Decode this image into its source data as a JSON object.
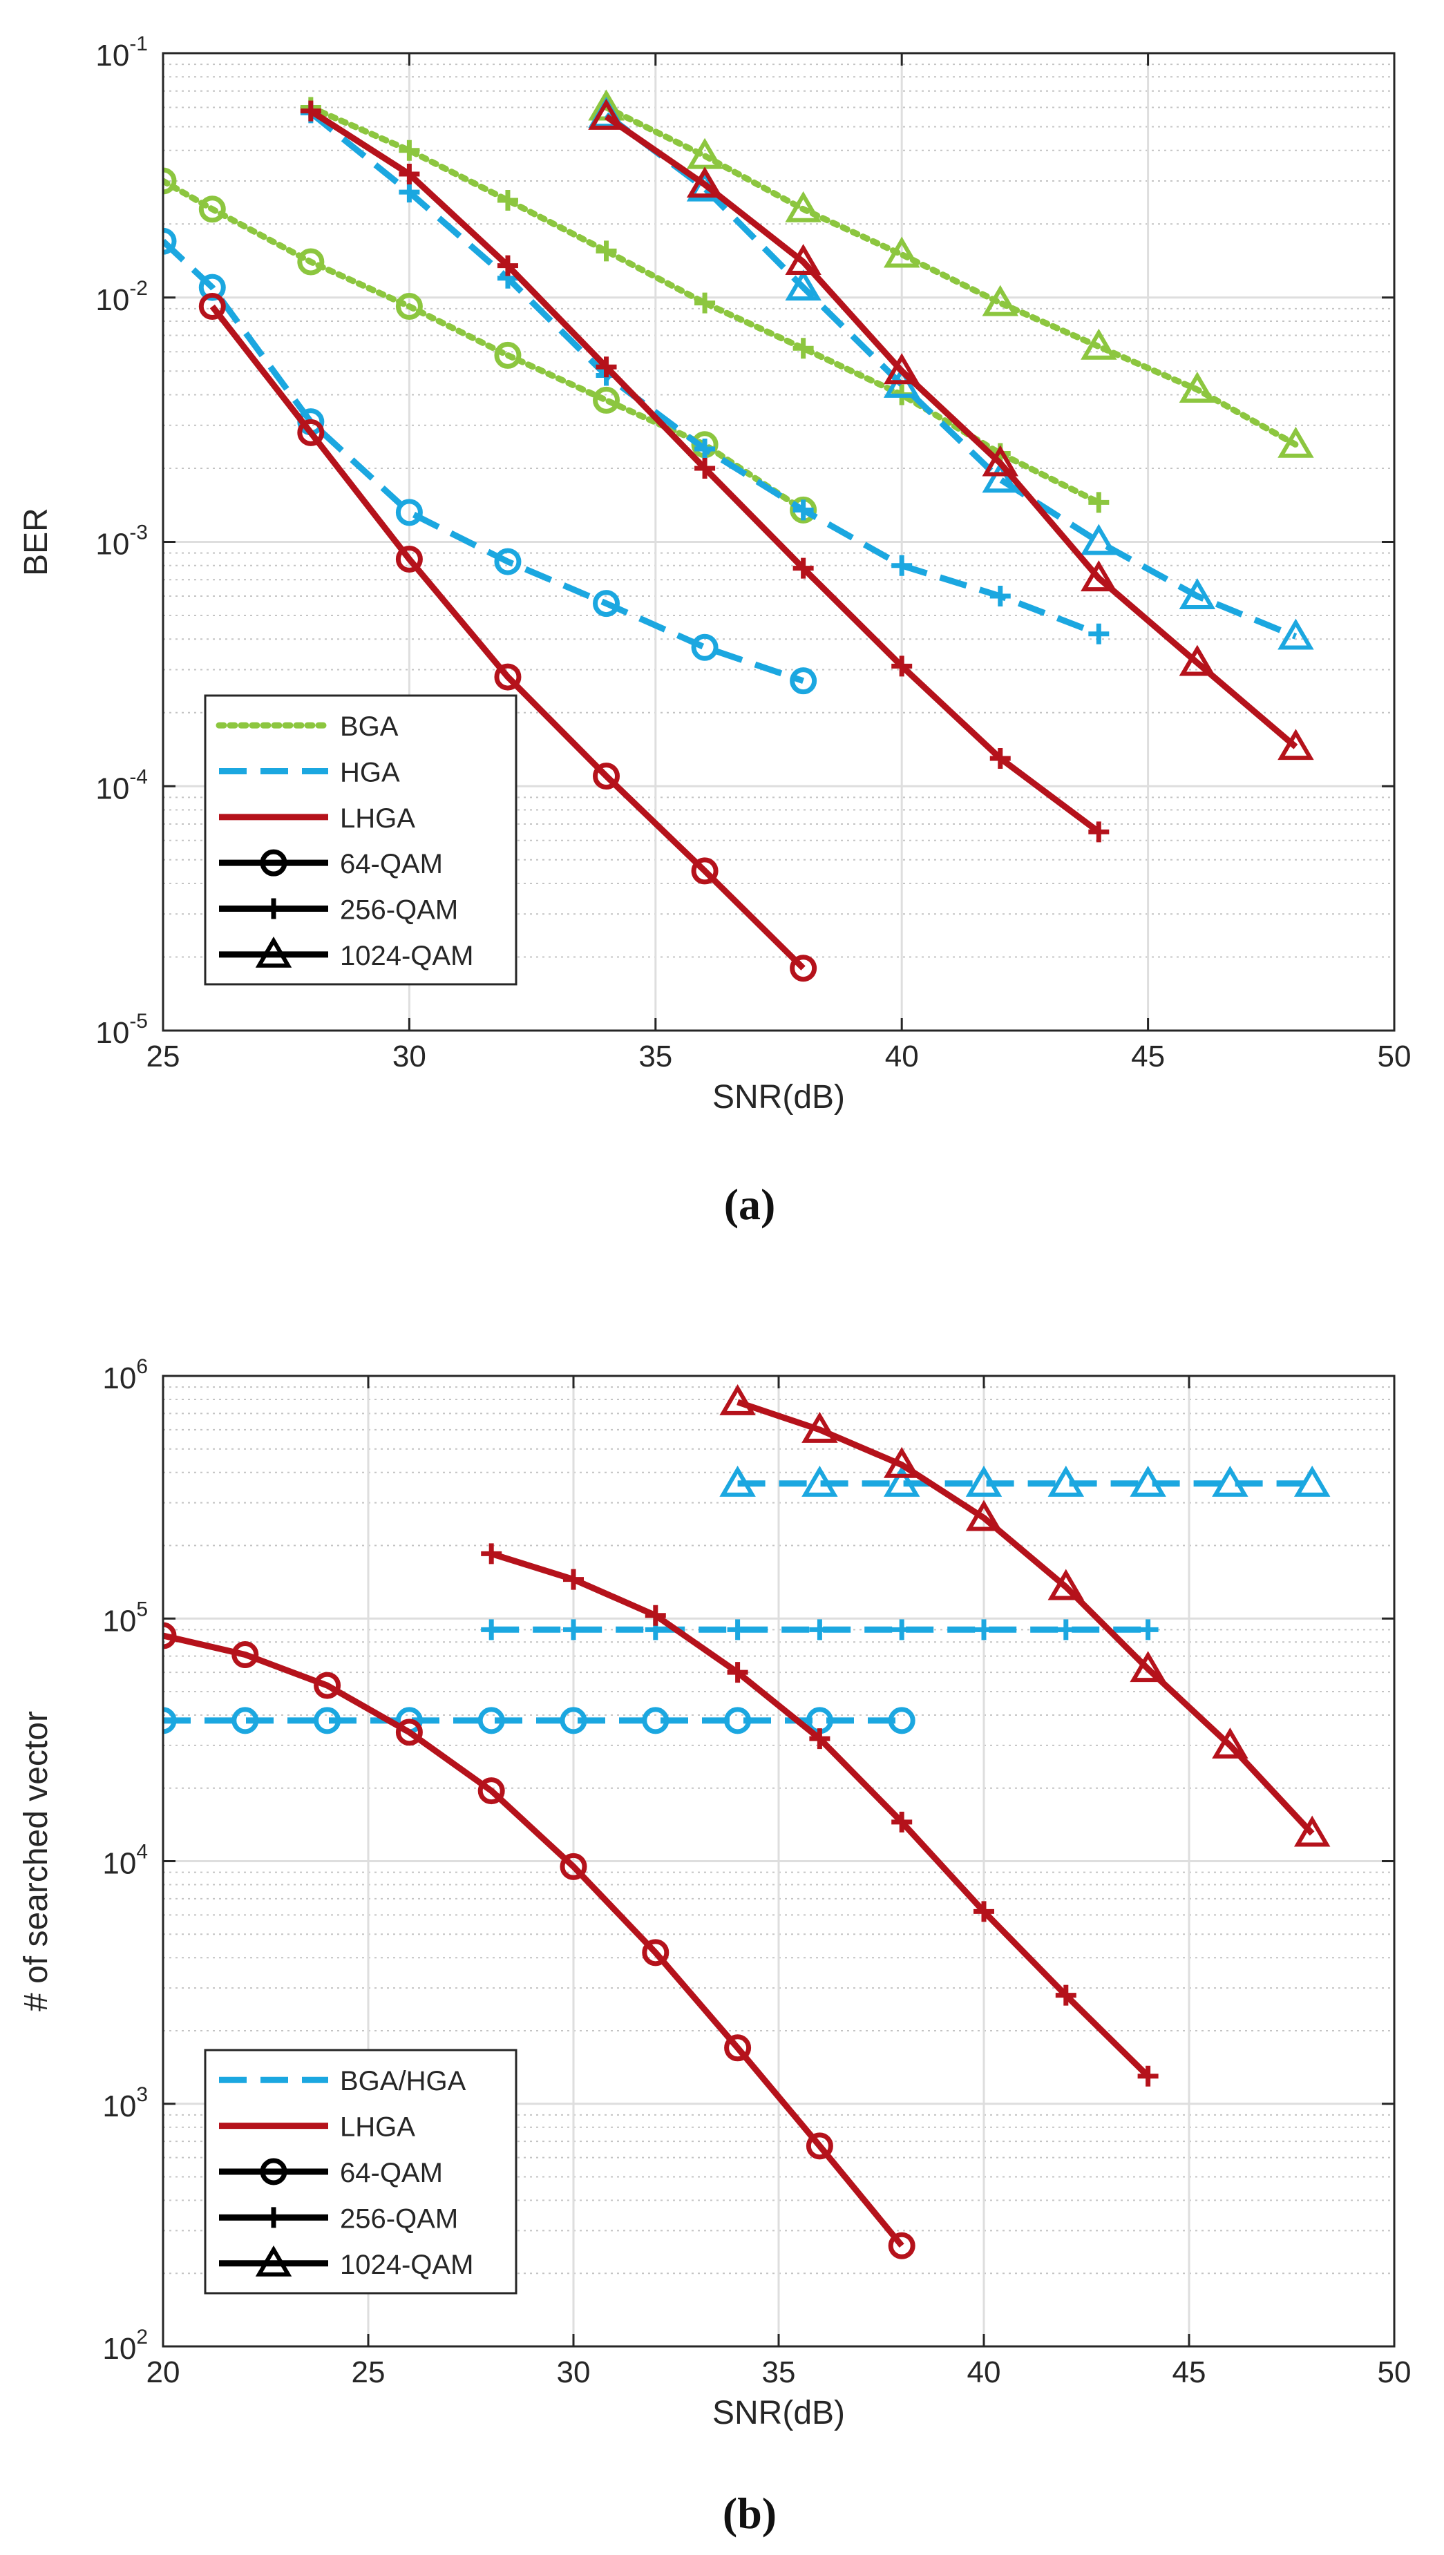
{
  "chart_data": [
    {
      "id": "a",
      "type": "line",
      "yscale": "log",
      "title": "",
      "subfigure_label": "(a)",
      "xlabel": "SNR(dB)",
      "ylabel": "BER",
      "xlim": [
        25,
        50
      ],
      "ylim": [
        1e-05,
        0.1
      ],
      "grid": true,
      "minor_grid": true,
      "xticks": [
        25,
        30,
        35,
        40,
        45,
        50
      ],
      "xtick_labels": [
        "25",
        "30",
        "35",
        "40",
        "45",
        "50"
      ],
      "yticks": [
        1e-05,
        0.0001,
        0.001,
        0.01,
        0.1
      ],
      "ytick_bases": [
        "10",
        "10",
        "10",
        "10",
        "10"
      ],
      "ytick_exps": [
        "-5",
        "-4",
        "-3",
        "-2",
        "-1"
      ],
      "legend_position": "bottom-left",
      "legend": [
        {
          "label": "BGA",
          "color": "#8CC63F",
          "dash": "dot",
          "marker": "none"
        },
        {
          "label": "HGA",
          "color": "#1BA7E0",
          "dash": "dash",
          "marker": "none"
        },
        {
          "label": "LHGA",
          "color": "#B5121B",
          "dash": "solid",
          "marker": "none"
        },
        {
          "label": "64-QAM",
          "color": "#000000",
          "dash": "solid",
          "marker": "circle"
        },
        {
          "label": "256-QAM",
          "color": "#000000",
          "dash": "solid",
          "marker": "plus"
        },
        {
          "label": "1024-QAM",
          "color": "#000000",
          "dash": "solid",
          "marker": "triangle"
        }
      ],
      "series": [
        {
          "name": "BGA 64-QAM",
          "color": "#8CC63F",
          "dash": "dot",
          "marker": "circle",
          "x": [
            25,
            26,
            28,
            30,
            32,
            34,
            36,
            38
          ],
          "y": [
            0.03,
            0.023,
            0.014,
            0.0092,
            0.0058,
            0.0038,
            0.0025,
            0.00135
          ]
        },
        {
          "name": "BGA 256-QAM",
          "color": "#8CC63F",
          "dash": "dot",
          "marker": "plus",
          "x": [
            28,
            30,
            32,
            34,
            36,
            38,
            40,
            42,
            44
          ],
          "y": [
            0.06,
            0.04,
            0.025,
            0.0155,
            0.0095,
            0.0062,
            0.004,
            0.0023,
            0.00145
          ]
        },
        {
          "name": "BGA 1024-QAM",
          "color": "#8CC63F",
          "dash": "dot",
          "marker": "triangle",
          "x": [
            34,
            36,
            38,
            40,
            42,
            44,
            46,
            48
          ],
          "y": [
            0.06,
            0.038,
            0.023,
            0.015,
            0.0095,
            0.0063,
            0.0042,
            0.0025
          ]
        },
        {
          "name": "HGA 64-QAM",
          "color": "#1BA7E0",
          "dash": "dash",
          "marker": "circle",
          "x": [
            25,
            26,
            28,
            30,
            32,
            34,
            36,
            38
          ],
          "y": [
            0.017,
            0.011,
            0.0031,
            0.00132,
            0.00083,
            0.00056,
            0.00037,
            0.00027
          ]
        },
        {
          "name": "HGA 256-QAM",
          "color": "#1BA7E0",
          "dash": "dash",
          "marker": "plus",
          "x": [
            28,
            30,
            32,
            34,
            36,
            38,
            40,
            42,
            44
          ],
          "y": [
            0.057,
            0.027,
            0.012,
            0.0048,
            0.0024,
            0.00135,
            0.0008,
            0.0006,
            0.00042
          ]
        },
        {
          "name": "HGA 1024-QAM",
          "color": "#1BA7E0",
          "dash": "dash",
          "marker": "triangle",
          "x": [
            34,
            36,
            38,
            40,
            42,
            44,
            46,
            48
          ],
          "y": [
            0.056,
            0.028,
            0.011,
            0.0044,
            0.0018,
            0.001,
            0.0006,
            0.00041
          ]
        },
        {
          "name": "LHGA 64-QAM",
          "color": "#B5121B",
          "dash": "solid",
          "marker": "circle",
          "x": [
            26,
            28,
            30,
            32,
            34,
            36,
            38
          ],
          "y": [
            0.0092,
            0.0028,
            0.00085,
            0.00028,
            0.00011,
            4.5e-05,
            1.8e-05
          ]
        },
        {
          "name": "LHGA 256-QAM",
          "color": "#B5121B",
          "dash": "solid",
          "marker": "plus",
          "x": [
            28,
            30,
            32,
            34,
            36,
            38,
            40,
            42,
            44
          ],
          "y": [
            0.058,
            0.032,
            0.0135,
            0.0052,
            0.002,
            0.00078,
            0.00031,
            0.00013,
            6.5e-05
          ]
        },
        {
          "name": "LHGA 1024-QAM",
          "color": "#B5121B",
          "dash": "solid",
          "marker": "triangle",
          "x": [
            34,
            36,
            38,
            40,
            42,
            44,
            46,
            48
          ],
          "y": [
            0.055,
            0.029,
            0.014,
            0.005,
            0.0021,
            0.00071,
            0.00032,
            0.000145
          ]
        }
      ]
    },
    {
      "id": "b",
      "type": "line",
      "yscale": "log",
      "title": "",
      "subfigure_label": "(b)",
      "xlabel": "SNR(dB)",
      "ylabel": "# of searched vector",
      "xlim": [
        20,
        50
      ],
      "ylim": [
        100,
        1000000
      ],
      "grid": true,
      "minor_grid": true,
      "xticks": [
        20,
        25,
        30,
        35,
        40,
        45,
        50
      ],
      "xtick_labels": [
        "20",
        "25",
        "30",
        "35",
        "40",
        "45",
        "50"
      ],
      "yticks": [
        100,
        1000,
        10000,
        100000,
        1000000
      ],
      "ytick_bases": [
        "10",
        "10",
        "10",
        "10",
        "10"
      ],
      "ytick_exps": [
        "2",
        "3",
        "4",
        "5",
        "6"
      ],
      "legend_position": "bottom-left",
      "legend": [
        {
          "label": "BGA/HGA",
          "color": "#1BA7E0",
          "dash": "dash",
          "marker": "none"
        },
        {
          "label": "LHGA",
          "color": "#B5121B",
          "dash": "solid",
          "marker": "none"
        },
        {
          "label": "64-QAM",
          "color": "#000000",
          "dash": "solid",
          "marker": "circle"
        },
        {
          "label": "256-QAM",
          "color": "#000000",
          "dash": "solid",
          "marker": "plus"
        },
        {
          "label": "1024-QAM",
          "color": "#000000",
          "dash": "solid",
          "marker": "triangle"
        }
      ],
      "series": [
        {
          "name": "BGA/HGA 64-QAM",
          "color": "#1BA7E0",
          "dash": "dash",
          "marker": "circle",
          "x": [
            20,
            22,
            24,
            26,
            28,
            30,
            32,
            34,
            36,
            38
          ],
          "y": [
            38000,
            38000,
            38000,
            38000,
            38000,
            38000,
            38000,
            38000,
            38000,
            38000
          ]
        },
        {
          "name": "BGA/HGA 256-QAM",
          "color": "#1BA7E0",
          "dash": "dash",
          "marker": "plus",
          "x": [
            28,
            30,
            32,
            34,
            36,
            38,
            40,
            42,
            44
          ],
          "y": [
            90000,
            90000,
            90000,
            90000,
            90000,
            90000,
            90000,
            90000,
            90000
          ]
        },
        {
          "name": "BGA/HGA 1024-QAM",
          "color": "#1BA7E0",
          "dash": "dash",
          "marker": "triangle",
          "x": [
            34,
            36,
            38,
            40,
            42,
            44,
            46,
            48
          ],
          "y": [
            360000,
            360000,
            360000,
            360000,
            360000,
            360000,
            360000,
            360000
          ]
        },
        {
          "name": "LHGA 64-QAM",
          "color": "#B5121B",
          "dash": "solid",
          "marker": "circle",
          "x": [
            20,
            22,
            24,
            26,
            28,
            30,
            32,
            34,
            36,
            38
          ],
          "y": [
            85000,
            71000,
            53000,
            34000,
            19500,
            9500,
            4200,
            1700,
            670,
            260
          ]
        },
        {
          "name": "LHGA 256-QAM",
          "color": "#B5121B",
          "dash": "solid",
          "marker": "plus",
          "x": [
            28,
            30,
            32,
            34,
            36,
            38,
            40,
            42,
            44
          ],
          "y": [
            185000,
            145000,
            103000,
            60000,
            32000,
            14500,
            6200,
            2800,
            1300
          ]
        },
        {
          "name": "LHGA 1024-QAM",
          "color": "#B5121B",
          "dash": "solid",
          "marker": "triangle",
          "x": [
            34,
            36,
            38,
            40,
            42,
            44,
            46,
            48
          ],
          "y": [
            780000,
            600000,
            430000,
            260000,
            135000,
            62000,
            30000,
            13000
          ]
        }
      ]
    }
  ]
}
